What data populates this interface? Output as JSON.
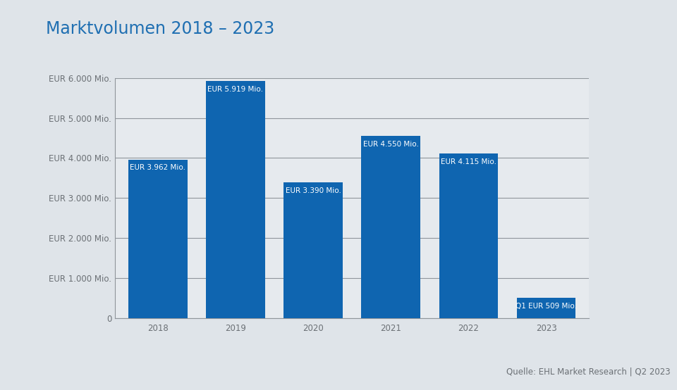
{
  "chart_data": {
    "type": "bar",
    "title": "Marktvolumen 2018 – 2023",
    "categories": [
      "2018",
      "2019",
      "2020",
      "2021",
      "2022",
      "2023"
    ],
    "values": [
      3962,
      5919,
      3390,
      4550,
      4115,
      509
    ],
    "value_labels": [
      "EUR 3.962 Mio.",
      "EUR 5.919 Mio.",
      "EUR 3.390 Mio.",
      "EUR 4.550 Mio.",
      "EUR 4.115 Mio.",
      "Q1 EUR 509 Mio."
    ],
    "data_labels": true,
    "color": "#0f65b0",
    "ylim": [
      0,
      6000
    ],
    "yticks": [
      0,
      {
        "value": 1000,
        "label": "EUR 1.000 Mio."
      },
      {
        "value": 2000,
        "label": "EUR 2.000 Mio."
      },
      {
        "value": 3000,
        "label": "EUR 3.000 Mio."
      },
      {
        "value": 4000,
        "label": "EUR 4.000 Mio."
      },
      {
        "value": 5000,
        "label": "EUR 5.000 Mio."
      },
      {
        "value": 6000,
        "label": "EUR 6.000 Mio."
      }
    ],
    "grid": true,
    "source": "Quelle: EHL Market Research | Q2 2023"
  }
}
